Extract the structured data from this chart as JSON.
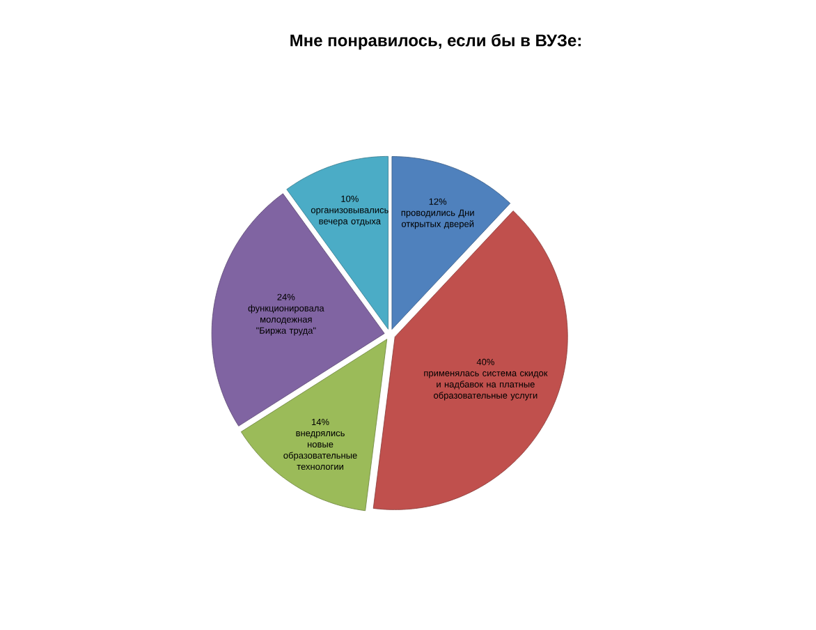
{
  "chart_data": {
    "type": "pie",
    "title": "Мне понравилось, если бы в ВУЗе:",
    "categories": [
      "проводились Дни открытых дверей",
      "применялась система скидок и надбавок на платные образовательные услуги",
      "внедрялись новые образовательные технологии",
      "функционировала молодежная \"Биржа труда\"",
      "организовывались вечера отдыха"
    ],
    "values": [
      12,
      40,
      14,
      24,
      10
    ],
    "value_labels": [
      "12%",
      "40%",
      "14%",
      "24%",
      "10%"
    ],
    "colors": [
      "#4f81bd",
      "#c0504d",
      "#9bbb59",
      "#8064a2",
      "#4bacc6"
    ]
  }
}
